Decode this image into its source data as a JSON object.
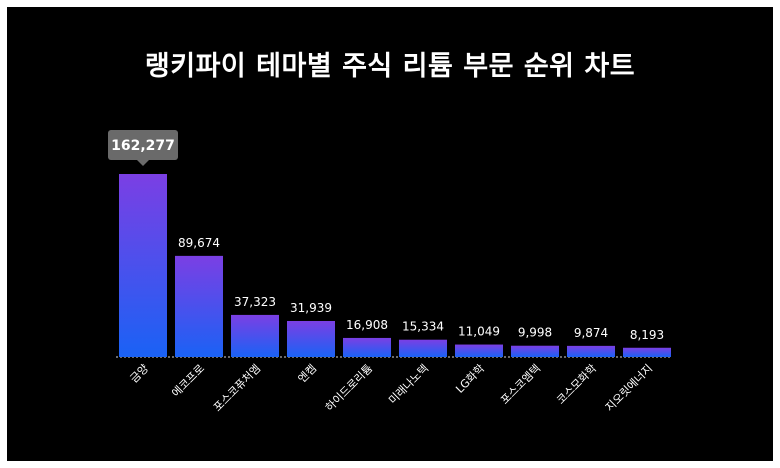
{
  "title": "랭키파이 테마별 주식 리튬 부문 순위 차트",
  "colors": {
    "background": "#000000",
    "bar_top": "#7b3fe4",
    "bar_bottom": "#1a62f5",
    "text": "#ffffff",
    "callout": "#6b6b6b"
  },
  "chart_data": {
    "type": "bar",
    "title": "랭키파이 테마별 주식 리튬 부문 순위 차트",
    "categories": [
      "금양",
      "에코프로",
      "포스코퓨처엠",
      "엔켐",
      "하이드로리튬",
      "미래나노텍",
      "LG화학",
      "포스코엠텍",
      "코스모화학",
      "지오릿에너지"
    ],
    "values": [
      162277,
      89674,
      37323,
      31939,
      16908,
      15334,
      11049,
      9998,
      9874,
      8193
    ],
    "value_labels": [
      "162,277",
      "89,674",
      "37,323",
      "31,939",
      "16,908",
      "15,334",
      "11,049",
      "9,998",
      "9,874",
      "8,193"
    ],
    "highlighted": "162,277",
    "ylim": [
      0,
      162277
    ],
    "grid": false,
    "legend": "none"
  }
}
